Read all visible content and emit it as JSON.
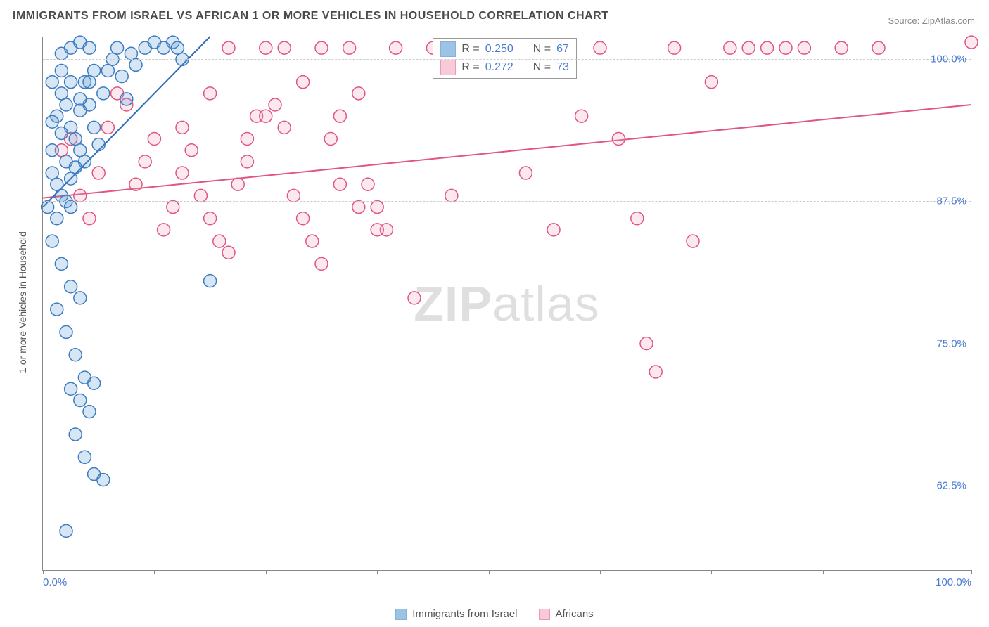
{
  "title": "IMMIGRANTS FROM ISRAEL VS AFRICAN 1 OR MORE VEHICLES IN HOUSEHOLD CORRELATION CHART",
  "source": "Source: ZipAtlas.com",
  "watermark_bold": "ZIP",
  "watermark_light": "atlas",
  "ylabel": "1 or more Vehicles in Household",
  "chart": {
    "type": "scatter",
    "xlim": [
      0,
      100
    ],
    "ylim": [
      55,
      102
    ],
    "xtick_positions": [
      0,
      12,
      24,
      36,
      48,
      60,
      72,
      84,
      100
    ],
    "xtick_labels": {
      "0": "0.0%",
      "100": "100.0%"
    },
    "ytick_positions": [
      62.5,
      75.0,
      87.5,
      100.0
    ],
    "ytick_labels": [
      "62.5%",
      "75.0%",
      "87.5%",
      "100.0%"
    ],
    "grid_color": "#cccccc",
    "axis_color": "#888888",
    "label_color": "#4a7bd0",
    "label_fontsize": 15,
    "plot_bg": "#ffffff",
    "marker_radius": 9,
    "marker_stroke_width": 1.5,
    "marker_fill_opacity": 0.25,
    "trend_line_width": 2,
    "series": [
      {
        "name": "Immigrants from Israel",
        "marker_color": "#5b9bd5",
        "marker_stroke": "#3d7cc0",
        "line_color": "#2e6bb8",
        "r": "0.250",
        "n": "67",
        "trend": {
          "x1": 0,
          "y1": 87.0,
          "x2": 18,
          "y2": 102.0
        },
        "points": [
          [
            0.5,
            87.0
          ],
          [
            1.0,
            92.0
          ],
          [
            1.5,
            95.0
          ],
          [
            1.0,
            98.0
          ],
          [
            2.0,
            100.5
          ],
          [
            3.0,
            101.0
          ],
          [
            4.0,
            101.5
          ],
          [
            5.0,
            101.0
          ],
          [
            5.5,
            99.0
          ],
          [
            2.0,
            97.0
          ],
          [
            2.5,
            96.0
          ],
          [
            3.0,
            94.0
          ],
          [
            3.5,
            93.0
          ],
          [
            4.0,
            92.0
          ],
          [
            4.5,
            91.0
          ],
          [
            1.0,
            90.0
          ],
          [
            1.5,
            89.0
          ],
          [
            2.0,
            88.0
          ],
          [
            2.5,
            87.5
          ],
          [
            3.0,
            87.0
          ],
          [
            3.5,
            90.5
          ],
          [
            4.0,
            95.5
          ],
          [
            4.5,
            98.0
          ],
          [
            5.0,
            96.0
          ],
          [
            5.5,
            94.0
          ],
          [
            6.0,
            92.5
          ],
          [
            6.5,
            97.0
          ],
          [
            7.0,
            99.0
          ],
          [
            7.5,
            100.0
          ],
          [
            8.0,
            101.0
          ],
          [
            8.5,
            98.5
          ],
          [
            9.0,
            96.5
          ],
          [
            9.5,
            100.5
          ],
          [
            10.0,
            99.5
          ],
          [
            11.0,
            101.0
          ],
          [
            12.0,
            101.5
          ],
          [
            13.0,
            101.0
          ],
          [
            14.0,
            101.5
          ],
          [
            14.5,
            101.0
          ],
          [
            15.0,
            100.0
          ],
          [
            2.0,
            93.5
          ],
          [
            2.5,
            91.0
          ],
          [
            3.0,
            89.5
          ],
          [
            1.5,
            86.0
          ],
          [
            1.0,
            84.0
          ],
          [
            2.0,
            82.0
          ],
          [
            3.0,
            80.0
          ],
          [
            4.0,
            79.0
          ],
          [
            1.5,
            78.0
          ],
          [
            2.5,
            76.0
          ],
          [
            3.5,
            74.0
          ],
          [
            4.5,
            72.0
          ],
          [
            5.5,
            71.5
          ],
          [
            3.0,
            71.0
          ],
          [
            4.0,
            70.0
          ],
          [
            5.0,
            69.0
          ],
          [
            3.5,
            67.0
          ],
          [
            4.5,
            65.0
          ],
          [
            5.5,
            63.5
          ],
          [
            6.5,
            63.0
          ],
          [
            2.5,
            58.5
          ],
          [
            18.0,
            80.5
          ],
          [
            1.0,
            94.5
          ],
          [
            2.0,
            99.0
          ],
          [
            3.0,
            98.0
          ],
          [
            4.0,
            96.5
          ],
          [
            5.0,
            98.0
          ]
        ]
      },
      {
        "name": "Africans",
        "marker_color": "#f4a6c0",
        "marker_stroke": "#e0567f",
        "line_color": "#e0567f",
        "r": "0.272",
        "n": "73",
        "trend": {
          "x1": 0,
          "y1": 87.8,
          "x2": 100,
          "y2": 96.0
        },
        "points": [
          [
            2,
            92
          ],
          [
            3,
            93
          ],
          [
            4,
            88
          ],
          [
            5,
            86
          ],
          [
            6,
            90
          ],
          [
            7,
            94
          ],
          [
            8,
            97
          ],
          [
            9,
            96
          ],
          [
            10,
            89
          ],
          [
            11,
            91
          ],
          [
            12,
            93
          ],
          [
            13,
            85
          ],
          [
            14,
            87
          ],
          [
            15,
            90
          ],
          [
            16,
            92
          ],
          [
            17,
            88
          ],
          [
            18,
            86
          ],
          [
            19,
            84
          ],
          [
            20,
            83
          ],
          [
            21,
            89
          ],
          [
            22,
            91
          ],
          [
            23,
            95
          ],
          [
            24,
            101
          ],
          [
            25,
            96
          ],
          [
            26,
            94
          ],
          [
            27,
            88
          ],
          [
            28,
            86
          ],
          [
            29,
            84
          ],
          [
            30,
            82
          ],
          [
            31,
            93
          ],
          [
            32,
            95
          ],
          [
            33,
            101
          ],
          [
            34,
            97
          ],
          [
            35,
            89
          ],
          [
            36,
            87
          ],
          [
            37,
            85
          ],
          [
            38,
            101
          ],
          [
            20,
            101
          ],
          [
            22,
            93
          ],
          [
            24,
            95
          ],
          [
            26,
            101
          ],
          [
            28,
            98
          ],
          [
            30,
            101
          ],
          [
            32,
            89
          ],
          [
            34,
            87
          ],
          [
            36,
            85
          ],
          [
            40,
            79
          ],
          [
            42,
            101
          ],
          [
            44,
            88
          ],
          [
            47,
            101
          ],
          [
            50,
            101
          ],
          [
            52,
            90
          ],
          [
            55,
            85
          ],
          [
            56,
            101
          ],
          [
            58,
            95
          ],
          [
            60,
            101
          ],
          [
            62,
            93
          ],
          [
            64,
            86
          ],
          [
            65,
            75
          ],
          [
            68,
            101
          ],
          [
            70,
            84
          ],
          [
            72,
            98
          ],
          [
            74,
            101
          ],
          [
            76,
            101
          ],
          [
            78,
            101
          ],
          [
            80,
            101
          ],
          [
            82,
            101
          ],
          [
            86,
            101
          ],
          [
            90,
            101
          ],
          [
            66,
            72.5
          ],
          [
            15,
            94
          ],
          [
            18,
            97
          ],
          [
            100,
            101.5
          ]
        ]
      }
    ]
  },
  "stats_box": {
    "headers": {
      "r": "R =",
      "n": "N ="
    }
  },
  "bottom_legend": {
    "items": [
      {
        "label": "Immigrants from Israel",
        "series": 0
      },
      {
        "label": "Africans",
        "series": 1
      }
    ]
  }
}
